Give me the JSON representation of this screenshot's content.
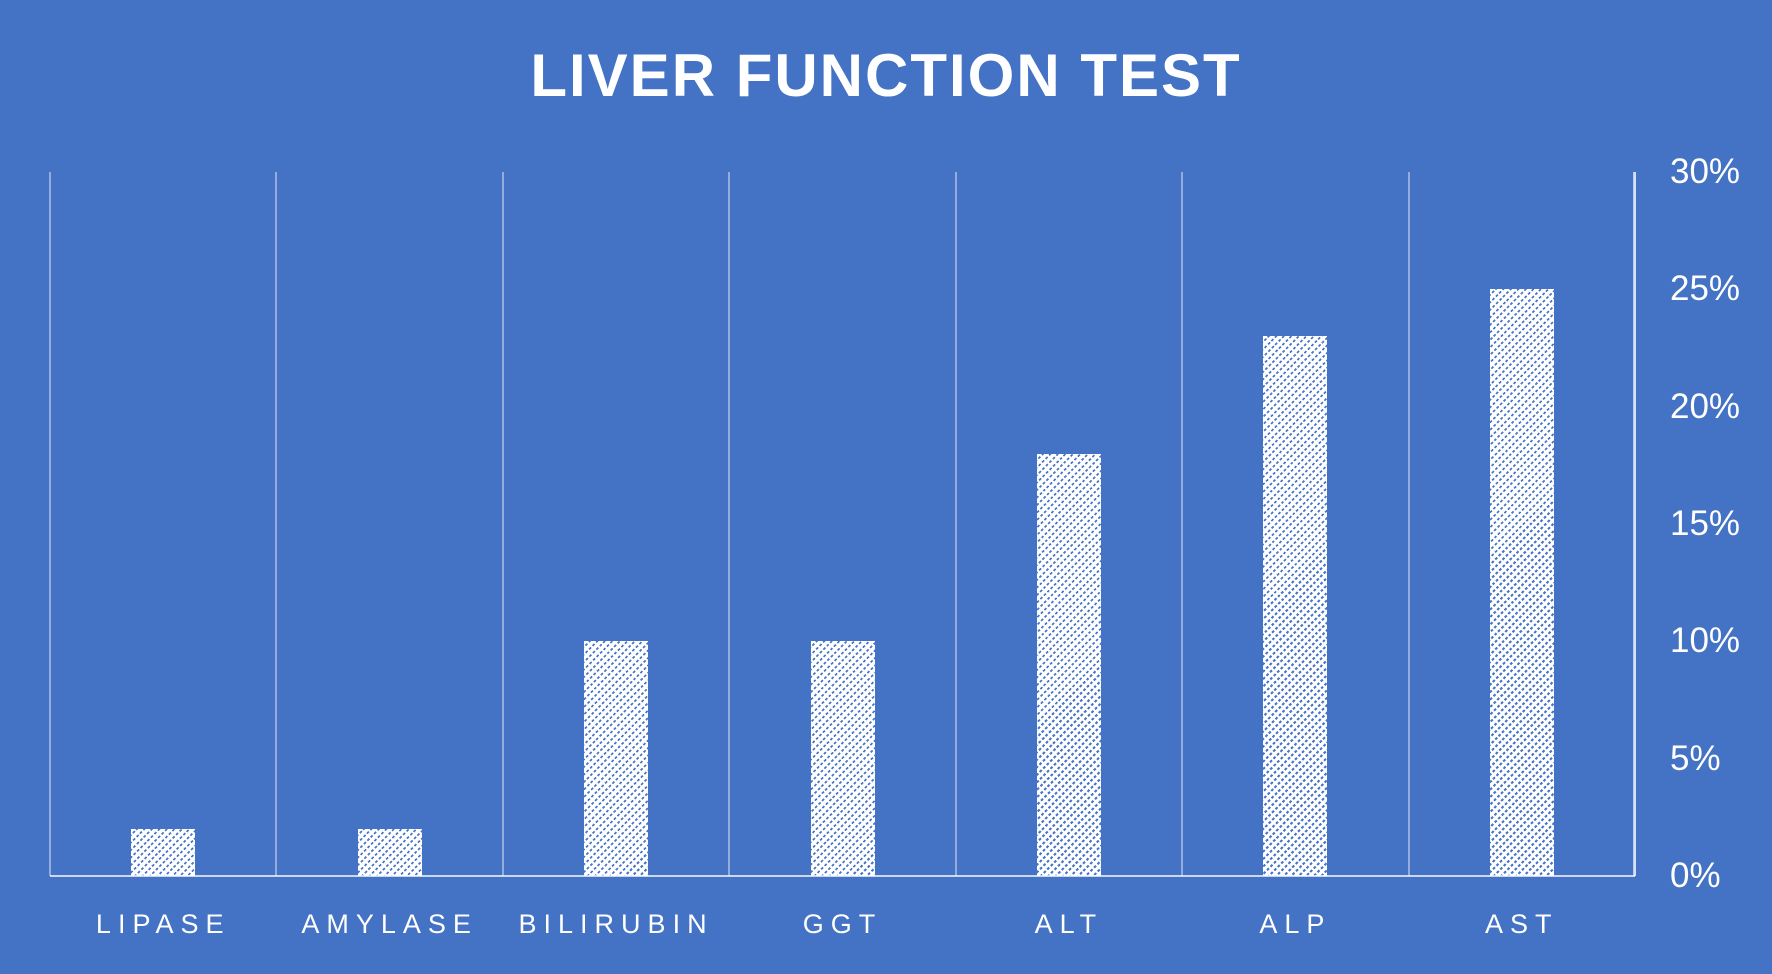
{
  "title": "LIVER FUNCTION TEST",
  "colors": {
    "background": "#4472C4",
    "text": "#FFFFFF",
    "gridline": "rgba(255,255,255,0.42)",
    "axis_line": "rgba(255,255,255,0.62)",
    "baseline": "rgba(255,255,255,0.72)",
    "bar_base": "#FFFFFF",
    "bar_stripe": "#4A77C9"
  },
  "chart_data": {
    "type": "bar",
    "title": "LIVER FUNCTION TEST",
    "categories": [
      "LIPASE",
      "AMYLASE",
      "BILIRUBIN",
      "GGT",
      "ALT",
      "ALP",
      "AST"
    ],
    "values": [
      2,
      2,
      10,
      10,
      18,
      23,
      25
    ],
    "value_unit": "%",
    "xlabel": "",
    "ylabel": "",
    "ylim": [
      0,
      30
    ],
    "ytick_step": 5,
    "ytick_labels": [
      "0%",
      "5%",
      "10%",
      "15%",
      "20%",
      "25%",
      "30%"
    ],
    "yaxis_side": "right",
    "legend": null,
    "grid": "vertical-category-separators-only",
    "bar_style": "white fill with blue dashed upward diagonal hatch"
  }
}
